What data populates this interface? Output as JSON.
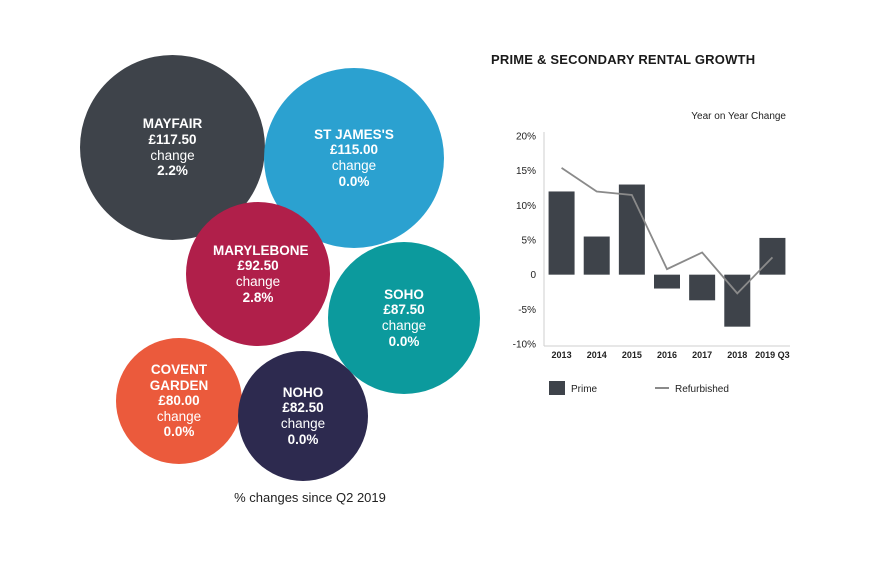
{
  "bubbles": {
    "mayfair": {
      "name": "MAYFAIR",
      "price": "£117.50",
      "change_label": "change",
      "pct": "2.2%",
      "color": "#3e434a"
    },
    "stjames": {
      "name": "ST JAMES'S",
      "price": "£115.00",
      "change_label": "change",
      "pct": "0.0%",
      "color": "#2ba1d0"
    },
    "marylebone": {
      "name": "MARYLEBONE",
      "price": "£92.50",
      "change_label": "change",
      "pct": "2.8%",
      "color": "#b01f4a"
    },
    "soho": {
      "name": "SOHO",
      "price": "£87.50",
      "change_label": "change",
      "pct": "0.0%",
      "color": "#0c9a9d"
    },
    "covent": {
      "name": "COVENT GARDEN",
      "price": "£80.00",
      "change_label": "change",
      "pct": "0.0%",
      "color": "#eb5a3c"
    },
    "noho": {
      "name": "NOHO",
      "price": "£82.50",
      "change_label": "change",
      "pct": "0.0%",
      "color": "#2d2a4f"
    }
  },
  "caption": "% changes since Q2 2019",
  "chart_data": {
    "type": "bar",
    "title": "PRIME & SECONDARY RENTAL GROWTH",
    "ylabel": "Year on Year Change",
    "categories": [
      "2013",
      "2014",
      "2015",
      "2016",
      "2017",
      "2018",
      "2019 Q3"
    ],
    "yticks": [
      "20%",
      "15%",
      "10%",
      "5%",
      "0",
      "-5%",
      "-10%"
    ],
    "ytick_values": [
      20,
      15,
      10,
      5,
      0,
      -5,
      -10
    ],
    "ylim": [
      -10,
      20
    ],
    "grid": false,
    "legend_position": "bottom",
    "series": [
      {
        "name": "Prime",
        "type": "bar",
        "color": "#3e434a",
        "values": [
          12,
          5.5,
          13,
          -2,
          -3.7,
          -7.5,
          5.3
        ]
      },
      {
        "name": "Refurbished",
        "type": "line",
        "color": "#8a8a8a",
        "values": [
          15.4,
          12,
          11.5,
          0.8,
          3.2,
          -2.7,
          2.5
        ]
      }
    ]
  }
}
